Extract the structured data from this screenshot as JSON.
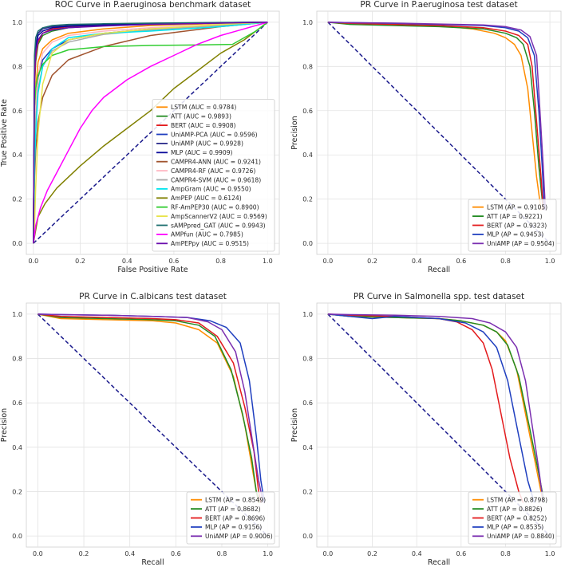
{
  "chart_data": [
    {
      "type": "line",
      "title": "ROC Curve in P.aeruginosa benchmark dataset",
      "xlabel": "False Positive Rate",
      "ylabel": "True Positive Rate",
      "xlim": [
        -0.03,
        1.05
      ],
      "ylim": [
        -0.05,
        1.05
      ],
      "xticks": [
        "0.0",
        "0.2",
        "0.4",
        "0.6",
        "0.8",
        "1.0"
      ],
      "yticks": [
        "0.0",
        "0.2",
        "0.4",
        "0.6",
        "0.8",
        "1.0"
      ],
      "grid": true,
      "legend_position": "bottom-right",
      "diagonal": "0-0 to 1-1",
      "series": [
        {
          "name": "LSTM (AUC = 0.9784)",
          "color": "#ff8c00",
          "x": [
            0,
            0.005,
            0.01,
            0.02,
            0.04,
            0.08,
            0.15,
            0.3,
            0.5,
            0.8,
            1
          ],
          "y": [
            0,
            0.55,
            0.7,
            0.82,
            0.88,
            0.92,
            0.95,
            0.97,
            0.985,
            0.995,
            1
          ]
        },
        {
          "name": "ATT (AUC = 0.9893)",
          "color": "#228b22",
          "x": [
            0,
            0.005,
            0.01,
            0.02,
            0.04,
            0.08,
            0.15,
            0.3,
            0.5,
            0.8,
            1
          ],
          "y": [
            0,
            0.7,
            0.82,
            0.9,
            0.94,
            0.96,
            0.975,
            0.985,
            0.99,
            0.997,
            1
          ]
        },
        {
          "name": "BERT (AUC = 0.9908)",
          "color": "#e31a1c",
          "x": [
            0,
            0.005,
            0.01,
            0.02,
            0.04,
            0.08,
            0.15,
            0.3,
            0.5,
            0.8,
            1
          ],
          "y": [
            0,
            0.72,
            0.84,
            0.91,
            0.95,
            0.97,
            0.98,
            0.988,
            0.993,
            0.998,
            1
          ]
        },
        {
          "name": "UniAMP-PCA (AUC = 0.9596)",
          "color": "#1f3fbf",
          "x": [
            0,
            0.005,
            0.01,
            0.02,
            0.04,
            0.08,
            0.15,
            0.3,
            0.5,
            0.8,
            1
          ],
          "y": [
            0,
            0.5,
            0.62,
            0.75,
            0.83,
            0.88,
            0.92,
            0.95,
            0.97,
            0.99,
            1
          ]
        },
        {
          "name": "UniAMP (AUC = 0.9928)",
          "color": "#2a2a8a",
          "x": [
            0,
            0.005,
            0.01,
            0.02,
            0.04,
            0.08,
            0.15,
            0.3,
            0.5,
            0.8,
            1
          ],
          "y": [
            0,
            0.8,
            0.9,
            0.95,
            0.97,
            0.98,
            0.985,
            0.99,
            0.995,
            0.998,
            1
          ]
        },
        {
          "name": "MLP (AUC = 0.9909)",
          "color": "#0a0a9a",
          "x": [
            0,
            0.005,
            0.01,
            0.02,
            0.04,
            0.08,
            0.15,
            0.3,
            0.5,
            0.8,
            1
          ],
          "y": [
            0,
            0.78,
            0.88,
            0.94,
            0.96,
            0.975,
            0.982,
            0.988,
            0.993,
            0.998,
            1
          ]
        },
        {
          "name": "CAMPR4-ANN (AUC = 0.9241)",
          "color": "#a0522d",
          "x": [
            0,
            0.005,
            0.01,
            0.02,
            0.04,
            0.08,
            0.15,
            0.3,
            0.5,
            0.8,
            1
          ],
          "y": [
            0,
            0.3,
            0.42,
            0.55,
            0.66,
            0.76,
            0.83,
            0.89,
            0.94,
            0.98,
            1
          ]
        },
        {
          "name": "CAMPR4-RF (AUC = 0.9726)",
          "color": "#ffb6c1",
          "x": [
            0,
            0.005,
            0.01,
            0.02,
            0.04,
            0.08,
            0.15,
            0.3,
            0.5,
            0.8,
            1
          ],
          "y": [
            0,
            0.45,
            0.62,
            0.76,
            0.86,
            0.91,
            0.94,
            0.96,
            0.975,
            0.99,
            1
          ]
        },
        {
          "name": "CAMPR4-SVM (AUC = 0.9618)",
          "color": "#a9a9a9",
          "x": [
            0,
            0.005,
            0.01,
            0.02,
            0.04,
            0.08,
            0.15,
            0.3,
            0.5,
            0.8,
            1
          ],
          "y": [
            0,
            0.4,
            0.56,
            0.7,
            0.8,
            0.87,
            0.91,
            0.945,
            0.965,
            0.985,
            1
          ]
        },
        {
          "name": "AmpGram (AUC = 0.9550)",
          "color": "#00e5ee",
          "x": [
            0,
            0.005,
            0.01,
            0.02,
            0.04,
            0.08,
            0.15,
            0.3,
            0.5,
            0.8,
            1
          ],
          "y": [
            0,
            0.35,
            0.5,
            0.68,
            0.8,
            0.88,
            0.93,
            0.95,
            0.96,
            0.98,
            1
          ]
        },
        {
          "name": "AmPEP (AUC = 0.6124)",
          "color": "#808000",
          "x": [
            0,
            0.02,
            0.05,
            0.1,
            0.2,
            0.3,
            0.4,
            0.5,
            0.6,
            0.7,
            0.8,
            0.9,
            1
          ],
          "y": [
            0,
            0.12,
            0.18,
            0.25,
            0.35,
            0.44,
            0.52,
            0.6,
            0.7,
            0.78,
            0.86,
            0.92,
            1
          ]
        },
        {
          "name": "RF-AmPEP30 (AUC = 0.8900)",
          "color": "#32cd32",
          "x": [
            0,
            0.005,
            0.01,
            0.02,
            0.04,
            0.08,
            0.15,
            0.3,
            0.5,
            0.7,
            0.85,
            0.95,
            1
          ],
          "y": [
            0,
            0.62,
            0.7,
            0.76,
            0.81,
            0.85,
            0.875,
            0.89,
            0.895,
            0.897,
            0.9,
            0.96,
            1
          ]
        },
        {
          "name": "AmpScannerV2 (AUC = 0.9569)",
          "color": "#e8e34a",
          "x": [
            0,
            0.005,
            0.01,
            0.02,
            0.04,
            0.08,
            0.15,
            0.3,
            0.5,
            0.8,
            1
          ],
          "y": [
            0,
            0.08,
            0.25,
            0.5,
            0.72,
            0.86,
            0.92,
            0.95,
            0.97,
            0.99,
            1
          ]
        },
        {
          "name": "sAMPpred_GAT (AUC = 0.9943)",
          "color": "#1b6e6e",
          "x": [
            0,
            0.005,
            0.01,
            0.02,
            0.04,
            0.08,
            0.15,
            0.3,
            0.5,
            0.8,
            1
          ],
          "y": [
            0,
            0.85,
            0.93,
            0.96,
            0.975,
            0.985,
            0.99,
            0.993,
            0.996,
            0.999,
            1
          ]
        },
        {
          "name": "AMPfun (AUC = 0.7985)",
          "color": "#ff00ff",
          "x": [
            0,
            0.01,
            0.03,
            0.06,
            0.1,
            0.15,
            0.2,
            0.25,
            0.3,
            0.4,
            0.5,
            0.6,
            0.7,
            0.8,
            0.9,
            1
          ],
          "y": [
            0,
            0.08,
            0.16,
            0.24,
            0.32,
            0.42,
            0.52,
            0.6,
            0.66,
            0.74,
            0.8,
            0.85,
            0.9,
            0.94,
            0.97,
            1
          ]
        },
        {
          "name": "AmPEPpy (AUC = 0.9515)",
          "color": "#6a0dad",
          "x": [
            0,
            0.005,
            0.01,
            0.02,
            0.04,
            0.08,
            0.15,
            0.3,
            0.5,
            0.8,
            1
          ],
          "y": [
            0,
            0.76,
            0.86,
            0.92,
            0.95,
            0.965,
            0.975,
            0.983,
            0.99,
            0.996,
            1
          ]
        }
      ]
    },
    {
      "type": "line",
      "title": "PR Curve in P.aeruginosa test dataset",
      "xlabel": "Recall",
      "ylabel": "Precision",
      "xlim": [
        -0.05,
        1.05
      ],
      "ylim": [
        -0.05,
        1.05
      ],
      "xticks": [
        "0.0",
        "0.2",
        "0.4",
        "0.6",
        "0.8",
        "1.0"
      ],
      "yticks": [
        "0.0",
        "0.2",
        "0.4",
        "0.6",
        "0.8",
        "1.0"
      ],
      "grid": true,
      "legend_position": "bottom-right",
      "diagonal": "0-1 to 1-0",
      "series": [
        {
          "name": "LSTM (AP = 0.9105)",
          "color": "#ff8c00",
          "x": [
            0,
            0.1,
            0.3,
            0.5,
            0.65,
            0.75,
            0.8,
            0.84,
            0.87,
            0.9,
            0.92,
            0.94,
            0.96
          ],
          "y": [
            1,
            0.995,
            0.99,
            0.985,
            0.97,
            0.95,
            0.93,
            0.9,
            0.85,
            0.7,
            0.5,
            0.3,
            0.15
          ]
        },
        {
          "name": "ATT (AP = 0.9221)",
          "color": "#228b22",
          "x": [
            0,
            0.1,
            0.3,
            0.5,
            0.7,
            0.8,
            0.85,
            0.88,
            0.91,
            0.93,
            0.95,
            0.97
          ],
          "y": [
            1,
            0.99,
            0.985,
            0.98,
            0.97,
            0.95,
            0.93,
            0.9,
            0.8,
            0.6,
            0.35,
            0.15
          ]
        },
        {
          "name": "BERT (AP = 0.9323)",
          "color": "#e31a1c",
          "x": [
            0,
            0.1,
            0.3,
            0.5,
            0.7,
            0.8,
            0.86,
            0.9,
            0.92,
            0.94,
            0.96,
            0.97
          ],
          "y": [
            1,
            0.995,
            0.99,
            0.985,
            0.975,
            0.96,
            0.94,
            0.9,
            0.8,
            0.55,
            0.3,
            0.15
          ]
        },
        {
          "name": "MLP (AP = 0.9453)",
          "color": "#1f3fbf",
          "x": [
            0,
            0.1,
            0.3,
            0.5,
            0.7,
            0.8,
            0.86,
            0.9,
            0.93,
            0.95,
            0.965,
            0.975
          ],
          "y": [
            1,
            0.998,
            0.995,
            0.99,
            0.985,
            0.975,
            0.96,
            0.93,
            0.85,
            0.6,
            0.35,
            0.15
          ]
        },
        {
          "name": "UniAMP (AP = 0.9504)",
          "color": "#7b2fb0",
          "x": [
            0,
            0.1,
            0.3,
            0.5,
            0.7,
            0.8,
            0.87,
            0.91,
            0.94,
            0.955,
            0.97,
            0.98
          ],
          "y": [
            1,
            0.998,
            0.996,
            0.992,
            0.988,
            0.98,
            0.965,
            0.935,
            0.85,
            0.6,
            0.35,
            0.15
          ]
        }
      ]
    },
    {
      "type": "line",
      "title": "PR Curve in C.albicans test dataset",
      "xlabel": "Recall",
      "ylabel": "Precision",
      "xlim": [
        -0.05,
        1.05
      ],
      "ylim": [
        -0.05,
        1.05
      ],
      "xticks": [
        "0.0",
        "0.2",
        "0.4",
        "0.6",
        "0.8",
        "1.0"
      ],
      "yticks": [
        "0.0",
        "0.2",
        "0.4",
        "0.6",
        "0.8",
        "1.0"
      ],
      "grid": true,
      "legend_position": "bottom-right",
      "diagonal": "0-1 to 1-0",
      "series": [
        {
          "name": "LSTM (AP = 0.8549)",
          "color": "#ff8c00",
          "x": [
            0,
            0.1,
            0.3,
            0.5,
            0.6,
            0.7,
            0.78,
            0.85,
            0.9,
            0.93,
            0.95,
            0.96
          ],
          "y": [
            1,
            0.98,
            0.975,
            0.97,
            0.96,
            0.93,
            0.87,
            0.72,
            0.5,
            0.32,
            0.2,
            0.15
          ]
        },
        {
          "name": "ATT (AP = 0.8682)",
          "color": "#228b22",
          "x": [
            0,
            0.1,
            0.3,
            0.5,
            0.6,
            0.7,
            0.77,
            0.84,
            0.89,
            0.93,
            0.95,
            0.965
          ],
          "y": [
            1,
            0.985,
            0.98,
            0.975,
            0.97,
            0.95,
            0.9,
            0.75,
            0.55,
            0.35,
            0.2,
            0.15
          ]
        },
        {
          "name": "BERT (AP = 0.8696)",
          "color": "#e31a1c",
          "x": [
            0,
            0.1,
            0.3,
            0.5,
            0.6,
            0.7,
            0.78,
            0.85,
            0.9,
            0.94,
            0.96,
            0.97
          ],
          "y": [
            1,
            0.99,
            0.985,
            0.98,
            0.975,
            0.96,
            0.9,
            0.78,
            0.58,
            0.38,
            0.2,
            0.15
          ]
        },
        {
          "name": "MLP (AP = 0.9156)",
          "color": "#1f3fbf",
          "x": [
            0,
            0.1,
            0.3,
            0.5,
            0.65,
            0.75,
            0.82,
            0.88,
            0.92,
            0.95,
            0.97,
            0.985
          ],
          "y": [
            1,
            0.998,
            0.995,
            0.99,
            0.985,
            0.97,
            0.94,
            0.87,
            0.7,
            0.45,
            0.25,
            0.15
          ]
        },
        {
          "name": "UniAMP (AP = 0.9006)",
          "color": "#7b2fb0",
          "x": [
            0,
            0.1,
            0.3,
            0.5,
            0.65,
            0.74,
            0.8,
            0.86,
            0.9,
            0.93,
            0.96,
            0.98
          ],
          "y": [
            1,
            0.998,
            0.995,
            0.99,
            0.985,
            0.965,
            0.93,
            0.83,
            0.65,
            0.45,
            0.25,
            0.15
          ]
        }
      ]
    },
    {
      "type": "line",
      "title": "PR Curve in Salmonella spp. test dataset",
      "xlabel": "Recall",
      "ylabel": "Precision",
      "xlim": [
        -0.05,
        1.05
      ],
      "ylim": [
        -0.05,
        1.05
      ],
      "xticks": [
        "0.0",
        "0.2",
        "0.4",
        "0.6",
        "0.8",
        "1.0"
      ],
      "yticks": [
        "0.0",
        "0.2",
        "0.4",
        "0.6",
        "0.8",
        "1.0"
      ],
      "grid": true,
      "legend_position": "bottom-right",
      "diagonal": "0-1 to 1-0",
      "series": [
        {
          "name": "LSTM (AP = 0.8798)",
          "color": "#ff8c00",
          "x": [
            0,
            0.1,
            0.3,
            0.5,
            0.6,
            0.7,
            0.76,
            0.8,
            0.85,
            0.9,
            0.94,
            0.97
          ],
          "y": [
            1,
            0.99,
            0.985,
            0.98,
            0.97,
            0.95,
            0.92,
            0.88,
            0.75,
            0.5,
            0.3,
            0.15
          ]
        },
        {
          "name": "ATT (AP = 0.8826)",
          "color": "#228b22",
          "x": [
            0,
            0.1,
            0.3,
            0.5,
            0.6,
            0.7,
            0.76,
            0.81,
            0.86,
            0.91,
            0.95,
            0.975
          ],
          "y": [
            1,
            0.99,
            0.985,
            0.98,
            0.97,
            0.95,
            0.92,
            0.86,
            0.72,
            0.48,
            0.28,
            0.15
          ]
        },
        {
          "name": "BERT (AP = 0.8252)",
          "color": "#e31a1c",
          "x": [
            0,
            0.1,
            0.3,
            0.5,
            0.58,
            0.65,
            0.7,
            0.74,
            0.78,
            0.82,
            0.86,
            0.88
          ],
          "y": [
            1,
            0.995,
            0.99,
            0.98,
            0.965,
            0.93,
            0.87,
            0.75,
            0.55,
            0.35,
            0.2,
            0.15
          ]
        },
        {
          "name": "MLP (AP = 0.8535)",
          "color": "#1f3fbf",
          "x": [
            0,
            0.1,
            0.2,
            0.3,
            0.5,
            0.62,
            0.7,
            0.76,
            0.81,
            0.86,
            0.9,
            0.93
          ],
          "y": [
            1,
            0.99,
            0.98,
            0.99,
            0.98,
            0.96,
            0.92,
            0.85,
            0.7,
            0.45,
            0.25,
            0.15
          ]
        },
        {
          "name": "UniAMP (AP = 0.8840)",
          "color": "#7b2fb0",
          "x": [
            0,
            0.1,
            0.3,
            0.5,
            0.65,
            0.73,
            0.8,
            0.85,
            0.89,
            0.92,
            0.95,
            0.97
          ],
          "y": [
            1,
            0.998,
            0.995,
            0.99,
            0.98,
            0.96,
            0.92,
            0.85,
            0.7,
            0.5,
            0.3,
            0.15
          ]
        }
      ]
    }
  ]
}
